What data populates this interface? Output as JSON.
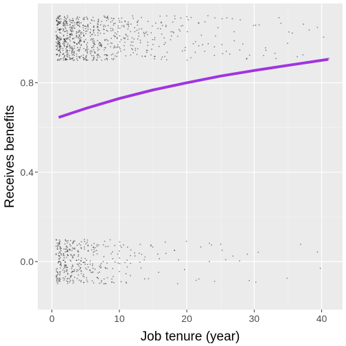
{
  "chart_data": {
    "type": "scatter",
    "title": "",
    "xlabel": "Job tenure (year)",
    "ylabel": "Receives benefits",
    "xlim": [
      -2.1,
      43.1
    ],
    "ylim": [
      -0.215,
      1.155
    ],
    "x_ticks": [
      0,
      10,
      20,
      30,
      40
    ],
    "y_ticks": [
      0.0,
      0.4,
      0.8
    ],
    "x_tick_labels": [
      "0",
      "10",
      "20",
      "30",
      "40"
    ],
    "y_tick_labels": [
      "0.0",
      "0.4",
      "0.8"
    ],
    "grid": true,
    "legend": "none",
    "points": {
      "description_levels": [
        0,
        1
      ],
      "jitter_height": 0.1,
      "x_range": [
        1,
        41
      ],
      "color": "#000000",
      "opacity": 0.45
    },
    "fit_curve": {
      "color": "#A034E0",
      "x": [
        1,
        5,
        10,
        15,
        20,
        25,
        30,
        35,
        41
      ],
      "y": [
        0.645,
        0.685,
        0.73,
        0.768,
        0.8,
        0.83,
        0.855,
        0.878,
        0.905
      ]
    }
  },
  "colors": {
    "panel_background": "#EBEBEB",
    "grid_major": "#FFFFFF",
    "grid_minor": "#F5F5F5",
    "axis_text": "#4D4D4D",
    "tick_mark": "#333333"
  }
}
